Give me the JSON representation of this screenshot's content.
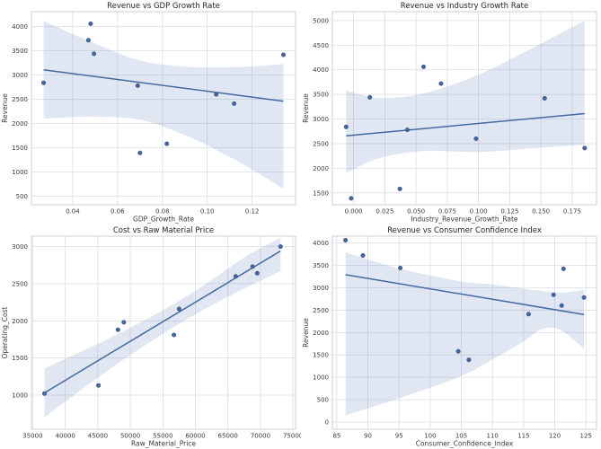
{
  "figure": {
    "background": "#ffffff",
    "theme": {
      "accent": "#4c72b0",
      "band_opacity": 0.17,
      "line_color": "#44699f",
      "marker_color": "#46679e",
      "marker_edge": "#3a567f",
      "grid_color": "#dcdde6",
      "spine_color": "#cccdd8",
      "tick_text_color": "#3a3a3a",
      "title_text_color": "#262626"
    }
  },
  "chart_data": [
    {
      "type": "scatter",
      "title": "Revenue vs GDP Growth Rate",
      "xlabel": "GDP_Growth_Rate",
      "ylabel": "Revenue",
      "grid": true,
      "legend": "none",
      "xlim": [
        0.0216,
        0.1394
      ],
      "ylim": [
        320,
        4310
      ],
      "xticks": [
        0.04,
        0.06,
        0.08,
        0.1,
        0.12
      ],
      "xtick_labels": [
        "0.04",
        "0.06",
        "0.08",
        "0.10",
        "0.12"
      ],
      "yticks": [
        500,
        1000,
        1500,
        2000,
        2500,
        3000,
        3500,
        4000
      ],
      "ytick_labels": [
        "500",
        "1000",
        "1500",
        "2000",
        "2500",
        "3000",
        "3500",
        "4000"
      ],
      "points": [
        [
          0.027,
          2840
        ],
        [
          0.048,
          4060
        ],
        [
          0.047,
          3720
        ],
        [
          0.0495,
          3440
        ],
        [
          0.069,
          2780
        ],
        [
          0.07,
          1390
        ],
        [
          0.082,
          1580
        ],
        [
          0.104,
          2600
        ],
        [
          0.112,
          2410
        ],
        [
          0.134,
          3420
        ]
      ],
      "trend": {
        "x": [
          0.027,
          0.134
        ],
        "y": [
          3110,
          2460
        ]
      },
      "ci_band": {
        "x": [
          0.027,
          0.048,
          0.07,
          0.09,
          0.105,
          0.12,
          0.134
        ],
        "upper": [
          4120,
          3690,
          3300,
          3175,
          3160,
          3180,
          3230
        ],
        "lower": [
          2100,
          2140,
          2075,
          1760,
          1430,
          1050,
          650
        ]
      }
    },
    {
      "type": "scatter",
      "title": "Revenue vs Industry Growth Rate",
      "xlabel": "Industry_Revenue_Growth_Rate",
      "ylabel": "Revenue",
      "grid": true,
      "legend": "none",
      "xlim": [
        -0.017,
        0.1945
      ],
      "ylim": [
        1260,
        5180
      ],
      "xticks": [
        0.0,
        0.025,
        0.05,
        0.075,
        0.1,
        0.125,
        0.15,
        0.175
      ],
      "xtick_labels": [
        "0.000",
        "0.025",
        "0.050",
        "0.075",
        "0.100",
        "0.125",
        "0.150",
        "0.175"
      ],
      "yticks": [
        1500,
        2000,
        2500,
        3000,
        3500,
        4000,
        4500,
        5000
      ],
      "ytick_labels": [
        "1500",
        "2000",
        "2500",
        "3000",
        "3500",
        "4000",
        "4500",
        "5000"
      ],
      "points": [
        [
          -0.006,
          2840
        ],
        [
          -0.002,
          1390
        ],
        [
          0.013,
          3440
        ],
        [
          0.037,
          1580
        ],
        [
          0.043,
          2780
        ],
        [
          0.056,
          4060
        ],
        [
          0.07,
          3720
        ],
        [
          0.098,
          2600
        ],
        [
          0.153,
          3420
        ],
        [
          0.185,
          2410
        ]
      ],
      "trend": {
        "x": [
          -0.006,
          0.185
        ],
        "y": [
          2660,
          3110
        ]
      },
      "ci_band": {
        "x": [
          -0.006,
          0.02,
          0.056,
          0.1,
          0.14,
          0.185
        ],
        "upper": [
          3580,
          3430,
          3520,
          3900,
          4400,
          5000
        ],
        "lower": [
          1900,
          2200,
          2350,
          2330,
          2400,
          2480
        ]
      }
    },
    {
      "type": "scatter",
      "title": "Cost vs Raw Material Price",
      "xlabel": "Raw_Material_Price",
      "ylabel": "Operating_Cost",
      "grid": true,
      "legend": "none",
      "xlim": [
        34800,
        75400
      ],
      "ylim": [
        540,
        3140
      ],
      "xticks": [
        35000,
        40000,
        45000,
        50000,
        55000,
        60000,
        65000,
        70000,
        75000
      ],
      "xtick_labels": [
        "35000",
        "40000",
        "45000",
        "50000",
        "55000",
        "60000",
        "65000",
        "70000",
        "75000"
      ],
      "yticks": [
        1000,
        1500,
        2000,
        2500,
        3000
      ],
      "ytick_labels": [
        "1000",
        "1500",
        "2000",
        "2500",
        "3000"
      ],
      "points": [
        [
          36800,
          1020
        ],
        [
          45100,
          1130
        ],
        [
          48100,
          1880
        ],
        [
          49000,
          1980
        ],
        [
          56700,
          1810
        ],
        [
          57500,
          2160
        ],
        [
          66200,
          2600
        ],
        [
          68800,
          2730
        ],
        [
          69500,
          2640
        ],
        [
          73100,
          3000
        ]
      ],
      "trend": {
        "x": [
          36800,
          73100
        ],
        "y": [
          1030,
          2940
        ]
      },
      "ci_band": {
        "x": [
          36800,
          45000,
          52000,
          57100,
          62000,
          68000,
          73100
        ],
        "upper": [
          1360,
          1690,
          2000,
          2250,
          2520,
          2880,
          3120
        ],
        "lower": [
          700,
          1235,
          1655,
          1940,
          2185,
          2455,
          2670
        ]
      }
    },
    {
      "type": "scatter",
      "title": "Revenue vs Consumer Confidence Index",
      "xlabel": "Consumer_Confidence_Index",
      "ylabel": "Revenue",
      "grid": true,
      "legend": "none",
      "xlim": [
        84.3,
        126.7
      ],
      "ylim": [
        -160,
        4150
      ],
      "xticks": [
        85,
        90,
        95,
        100,
        105,
        110,
        115,
        120,
        125
      ],
      "xtick_labels": [
        "85",
        "90",
        "95",
        "100",
        "105",
        "110",
        "115",
        "120",
        "125"
      ],
      "yticks": [
        0,
        500,
        1000,
        1500,
        2000,
        2500,
        3000,
        3500,
        4000
      ],
      "ytick_labels": [
        "0",
        "500",
        "1000",
        "1500",
        "2000",
        "2500",
        "3000",
        "3500",
        "4000"
      ],
      "points": [
        [
          86.4,
          4060
        ],
        [
          89.2,
          3720
        ],
        [
          95.2,
          3440
        ],
        [
          104.5,
          1580
        ],
        [
          106.2,
          1390
        ],
        [
          115.8,
          2410
        ],
        [
          119.8,
          2840
        ],
        [
          121.1,
          2600
        ],
        [
          121.4,
          3420
        ],
        [
          124.7,
          2780
        ]
      ],
      "trend": {
        "x": [
          86.4,
          124.7
        ],
        "y": [
          3290,
          2400
        ]
      },
      "ci_band": {
        "x": [
          86.4,
          95,
          105,
          110,
          115,
          118,
          121,
          124.7
        ],
        "upper": [
          3790,
          3430,
          3140,
          3075,
          2975,
          2930,
          2890,
          2950
        ],
        "lower": [
          150,
          530,
          1030,
          1400,
          1800,
          2080,
          2050,
          1630
        ]
      }
    }
  ]
}
